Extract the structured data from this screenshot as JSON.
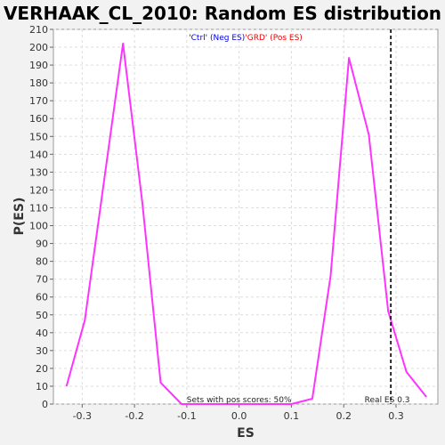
{
  "chart_data": {
    "type": "line",
    "title": "VERHAAK_CL_2010: Random ES distribution",
    "xlabel": "ES",
    "ylabel": "P(ES)",
    "xlim": [
      -0.355,
      0.38
    ],
    "ylim": [
      0,
      210
    ],
    "xticks": [
      -0.3,
      -0.2,
      -0.1,
      0.0,
      0.1,
      0.2,
      0.3
    ],
    "xtick_labels": [
      "-0.3",
      "-0.2",
      "-0.1",
      "0.0",
      "0.1",
      "0.2",
      "0.3"
    ],
    "yticks": [
      0,
      10,
      20,
      30,
      40,
      50,
      60,
      70,
      80,
      90,
      100,
      110,
      120,
      130,
      140,
      150,
      160,
      170,
      180,
      190,
      200,
      210
    ],
    "grid": true,
    "line_color": "#ff33ff",
    "series": [
      {
        "x": [
          -0.33,
          -0.295,
          -0.222,
          -0.185,
          -0.15,
          -0.11,
          -0.07,
          -0.03,
          0.0,
          0.03,
          0.07,
          0.1,
          0.14,
          0.175,
          0.21,
          0.248,
          0.285,
          0.32,
          0.358
        ],
        "y": [
          10,
          47,
          202,
          113,
          12,
          0,
          0,
          0,
          0,
          0,
          0,
          0,
          3,
          72,
          194,
          151,
          52,
          18,
          4
        ]
      }
    ],
    "legend_parts": [
      {
        "text": "'Ctrl' (Neg ES)",
        "color": "#0000ee"
      },
      {
        "text": "'GRD' (Pos ES)",
        "color": "#ee0000"
      }
    ],
    "real_es": 0.29,
    "real_es_label": "Real ES 0.3",
    "pos_scores_label": "Sets with pos scores: 50%"
  }
}
